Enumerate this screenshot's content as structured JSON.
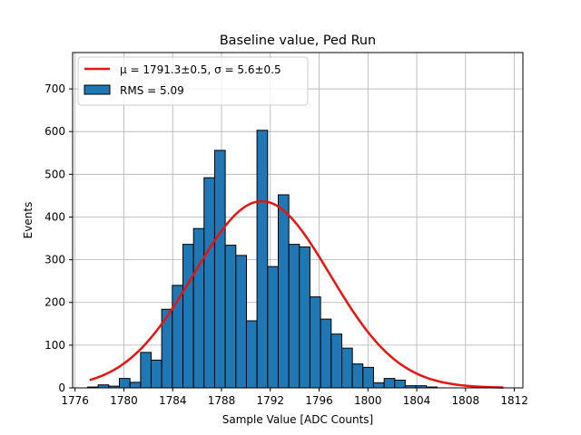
{
  "chart_data": {
    "type": "bar",
    "title": "Baseline value, Ped Run",
    "xlabel": "Sample Value [ADC Counts]",
    "ylabel": "Events",
    "xlim": [
      1775.8,
      1812.7
    ],
    "ylim": [
      0,
      785
    ],
    "grid": true,
    "legend_placement": "top-left",
    "x_ticks": [
      1776,
      1780,
      1784,
      1788,
      1792,
      1796,
      1800,
      1804,
      1808,
      1812
    ],
    "y_ticks": [
      0,
      100,
      200,
      300,
      400,
      500,
      600,
      700
    ],
    "bar_color": "#1f77b4",
    "bar_edge_color": "#000000",
    "fit_color": "#e8140f",
    "legend": {
      "fit_label": "μ = 1791.3±0.5, σ = 5.6±0.5",
      "hist_label": "RMS = 5.09"
    },
    "bin_width": 0.8676,
    "bins": [
      {
        "left": 1777.02,
        "count": 2
      },
      {
        "left": 1777.89,
        "count": 7
      },
      {
        "left": 1778.76,
        "count": 4
      },
      {
        "left": 1779.63,
        "count": 22
      },
      {
        "left": 1780.5,
        "count": 13
      },
      {
        "left": 1781.37,
        "count": 83
      },
      {
        "left": 1782.23,
        "count": 65
      },
      {
        "left": 1783.1,
        "count": 184
      },
      {
        "left": 1783.97,
        "count": 240
      },
      {
        "left": 1784.84,
        "count": 336
      },
      {
        "left": 1785.71,
        "count": 373
      },
      {
        "left": 1786.57,
        "count": 492
      },
      {
        "left": 1787.44,
        "count": 556
      },
      {
        "left": 1788.31,
        "count": 334
      },
      {
        "left": 1789.18,
        "count": 310
      },
      {
        "left": 1790.04,
        "count": 157
      },
      {
        "left": 1790.91,
        "count": 603
      },
      {
        "left": 1791.78,
        "count": 284
      },
      {
        "left": 1792.65,
        "count": 452
      },
      {
        "left": 1793.52,
        "count": 336
      },
      {
        "left": 1794.38,
        "count": 330
      },
      {
        "left": 1795.25,
        "count": 213
      },
      {
        "left": 1796.12,
        "count": 161
      },
      {
        "left": 1796.99,
        "count": 126
      },
      {
        "left": 1797.86,
        "count": 93
      },
      {
        "left": 1798.72,
        "count": 56
      },
      {
        "left": 1799.59,
        "count": 48
      },
      {
        "left": 1800.46,
        "count": 12
      },
      {
        "left": 1801.33,
        "count": 22
      },
      {
        "left": 1802.19,
        "count": 18
      },
      {
        "left": 1803.06,
        "count": 5
      },
      {
        "left": 1803.93,
        "count": 5
      },
      {
        "left": 1804.8,
        "count": 2
      }
    ],
    "fit": {
      "mu": 1791.3,
      "sigma": 5.6,
      "amplitude": 437,
      "x_range": [
        1777.2,
        1811.1
      ]
    }
  }
}
